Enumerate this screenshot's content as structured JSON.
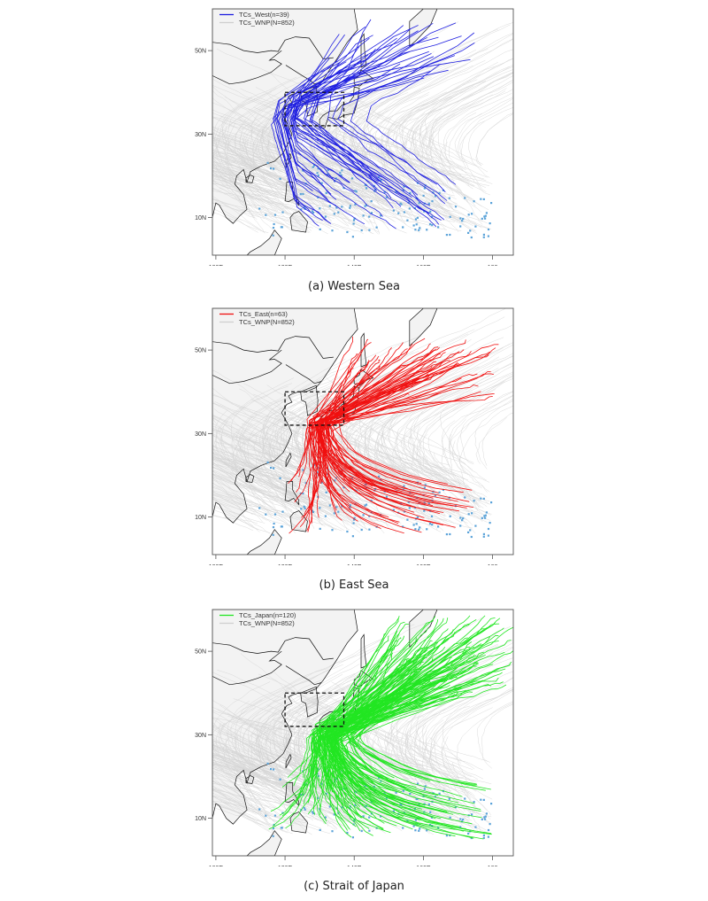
{
  "figure": {
    "panels": [
      {
        "id": "a",
        "caption": "(a) Western Sea",
        "legend": [
          {
            "label": "TCs_West(n=39)",
            "color": "#1f1fe0"
          },
          {
            "label": "TCs_WNP(N=852)",
            "color": "#cfcfcf"
          }
        ],
        "highlight_color": "#1f1fe0",
        "highlight_count": 39
      },
      {
        "id": "b",
        "caption": "(b) East Sea",
        "legend": [
          {
            "label": "TCs_East(n=63)",
            "color": "#f01010"
          },
          {
            "label": "TCs_WNP(N=852)",
            "color": "#cfcfcf"
          }
        ],
        "highlight_color": "#f01010",
        "highlight_count": 63
      },
      {
        "id": "c",
        "caption": "(c) Strait of Japan",
        "legend": [
          {
            "label": "TCs_Japan(n=120)",
            "color": "#22e622"
          },
          {
            "label": "TCs_WNP(N=852)",
            "color": "#cfcfcf"
          }
        ],
        "highlight_color": "#22e622",
        "highlight_count": 120
      }
    ],
    "x_ticks": [
      "100E",
      "120E",
      "140E",
      "160E",
      "180"
    ],
    "y_ticks": [
      "50N",
      "30N",
      "10N"
    ],
    "colors": {
      "background_tracks": "#cfcfcf",
      "genesis_points": "#5ba3d9",
      "land": "#f3f3f3",
      "ocean": "#ffffff",
      "coastline": "#111111",
      "box": "#111111"
    }
  },
  "chart_data": [
    {
      "type": "line",
      "title": "(a) Western Sea",
      "xlabel": "",
      "ylabel": "",
      "x_ticks": [
        "100E",
        "120E",
        "140E",
        "160E",
        "180"
      ],
      "y_ticks": [
        "10N",
        "30N",
        "50N"
      ],
      "xlim": [
        99,
        186
      ],
      "ylim": [
        1,
        60
      ],
      "legend": [
        "TCs_West(n=39)",
        "TCs_WNP(N=852)"
      ],
      "series": [
        {
          "name": "TCs_West",
          "count": 39,
          "color": "#1f1fe0"
        },
        {
          "name": "TCs_WNP",
          "count": 852,
          "color": "#cfcfcf"
        }
      ],
      "annotations": [
        "dashed box approx 120E-137E, 32N-40N",
        "light-blue dots mark TC genesis points"
      ],
      "legend_position": "top-left",
      "grid": false
    },
    {
      "type": "line",
      "title": "(b) East Sea",
      "xlabel": "",
      "ylabel": "",
      "x_ticks": [
        "100E",
        "120E",
        "140E",
        "160E",
        "180"
      ],
      "y_ticks": [
        "10N",
        "30N",
        "50N"
      ],
      "xlim": [
        99,
        186
      ],
      "ylim": [
        1,
        60
      ],
      "legend": [
        "TCs_East(n=63)",
        "TCs_WNP(N=852)"
      ],
      "series": [
        {
          "name": "TCs_East",
          "count": 63,
          "color": "#f01010"
        },
        {
          "name": "TCs_WNP",
          "count": 852,
          "color": "#cfcfcf"
        }
      ],
      "annotations": [
        "dashed box approx 120E-137E, 32N-40N",
        "light-blue dots mark TC genesis points"
      ],
      "legend_position": "top-left",
      "grid": false
    },
    {
      "type": "line",
      "title": "(c) Strait of Japan",
      "xlabel": "",
      "ylabel": "",
      "x_ticks": [
        "100E",
        "120E",
        "140E",
        "160E",
        "180"
      ],
      "y_ticks": [
        "10N",
        "30N",
        "50N"
      ],
      "xlim": [
        99,
        186
      ],
      "ylim": [
        1,
        60
      ],
      "legend": [
        "TCs_Japan(n=120)",
        "TCs_WNP(N=852)"
      ],
      "series": [
        {
          "name": "TCs_Japan",
          "count": 120,
          "color": "#22e622"
        },
        {
          "name": "TCs_WNP",
          "count": 852,
          "color": "#cfcfcf"
        }
      ],
      "annotations": [
        "dashed box approx 120E-137E, 32N-40N",
        "light-blue dots mark TC genesis points"
      ],
      "legend_position": "top-left",
      "grid": false
    }
  ]
}
